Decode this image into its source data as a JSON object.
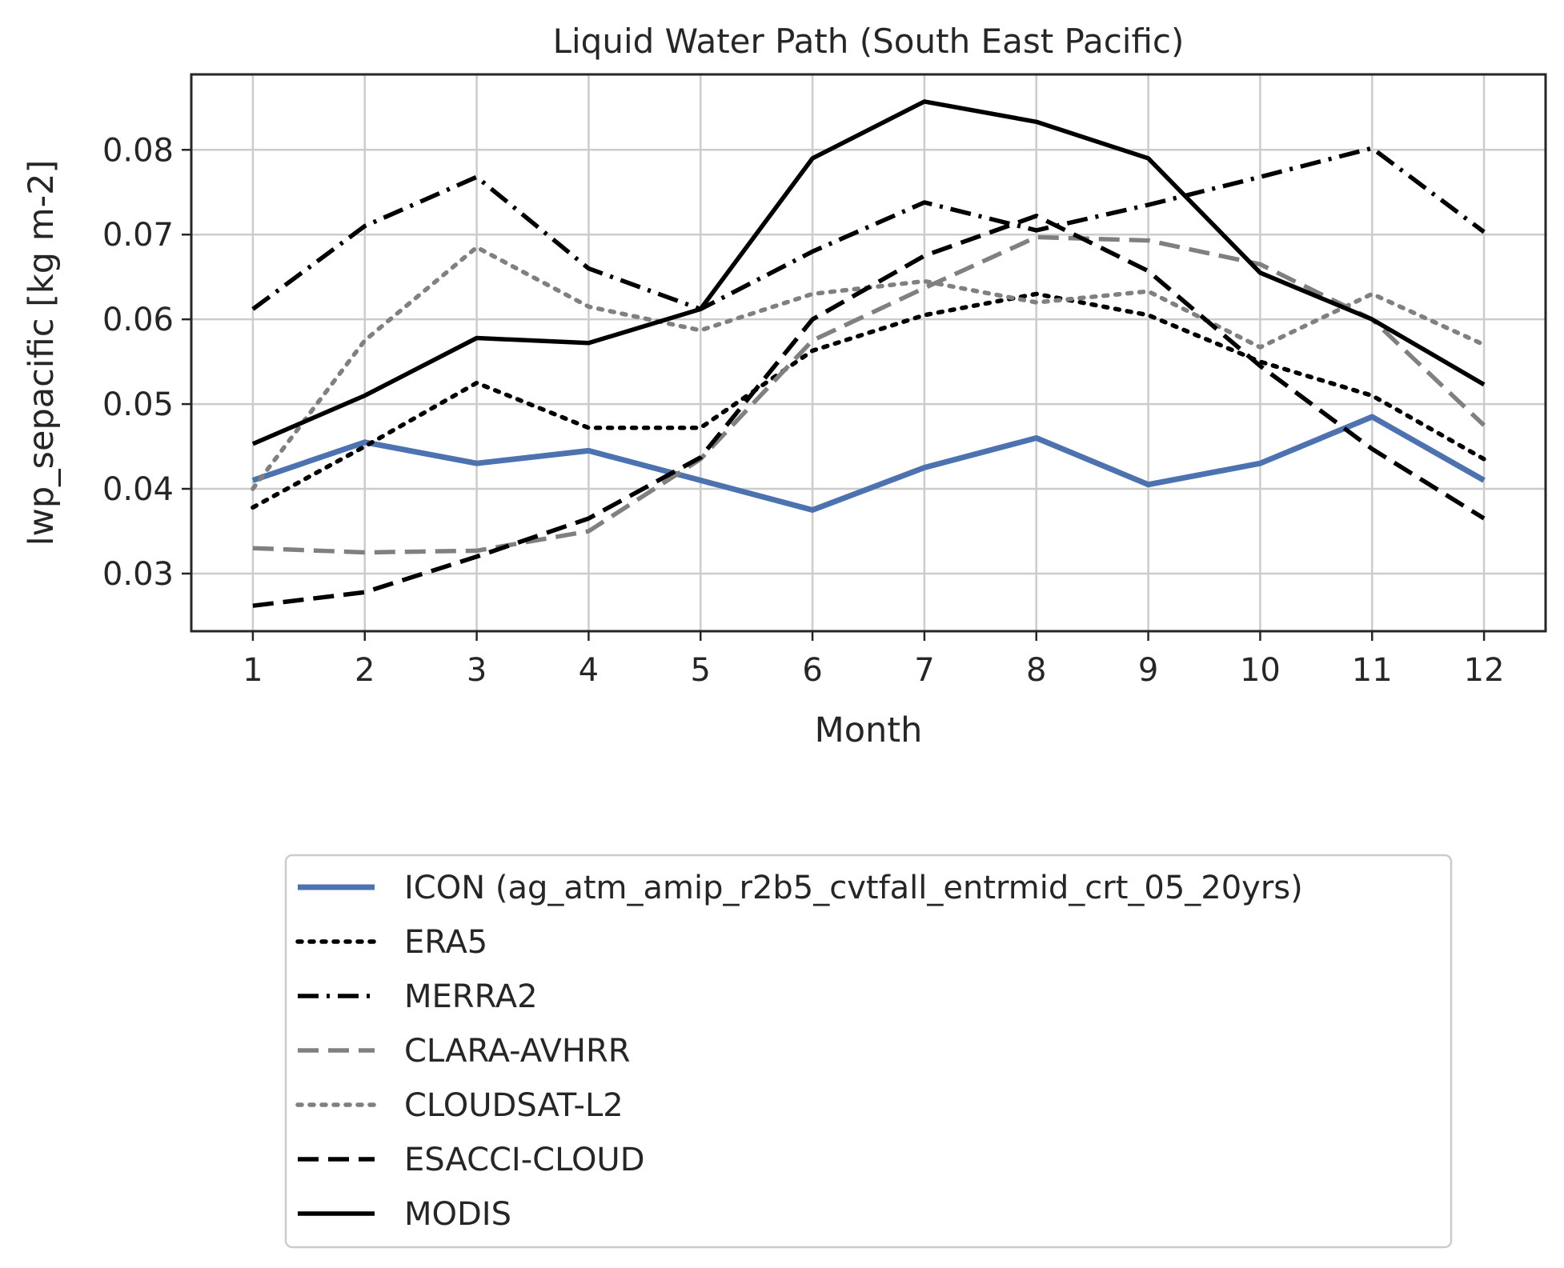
{
  "chart_data": {
    "type": "line",
    "title": "Liquid Water Path (South East Pacific)",
    "xlabel": "Month",
    "ylabel": "lwp_sepacific [kg m-2]",
    "x": [
      1,
      2,
      3,
      4,
      5,
      6,
      7,
      8,
      9,
      10,
      11,
      12
    ],
    "xlim": [
      0.45,
      12.55
    ],
    "ylim": [
      0.0232,
      0.0889
    ],
    "x_ticks": [
      "1",
      "2",
      "3",
      "4",
      "5",
      "6",
      "7",
      "8",
      "9",
      "10",
      "11",
      "12"
    ],
    "y_ticks": [
      "0.03",
      "0.04",
      "0.05",
      "0.06",
      "0.07",
      "0.08"
    ],
    "y_tick_values": [
      0.03,
      0.04,
      0.05,
      0.06,
      0.07,
      0.08
    ],
    "grid": true,
    "legend_position": "below",
    "series": [
      {
        "name": "ICON (ag_atm_amip_r2b5_cvtfall_entrmid_crt_05_20yrs)",
        "color": "#4c72b0",
        "style": "solid",
        "values": [
          0.041,
          0.0455,
          0.043,
          0.0445,
          0.041,
          0.0375,
          0.0425,
          0.046,
          0.0405,
          0.043,
          0.0485,
          0.041
        ]
      },
      {
        "name": "ERA5",
        "color": "#000000",
        "style": "dotted",
        "values": [
          0.0378,
          0.045,
          0.0525,
          0.0472,
          0.0472,
          0.0563,
          0.0605,
          0.063,
          0.0605,
          0.055,
          0.051,
          0.0435
        ]
      },
      {
        "name": "MERRA2",
        "color": "#000000",
        "style": "dashdot",
        "values": [
          0.0612,
          0.071,
          0.0768,
          0.066,
          0.0612,
          0.068,
          0.0738,
          0.0705,
          0.0735,
          0.0768,
          0.0802,
          0.0703
        ]
      },
      {
        "name": "CLARA-AVHRR",
        "color": "#808080",
        "style": "dashed",
        "values": [
          0.033,
          0.0325,
          0.0327,
          0.035,
          0.0435,
          0.0575,
          0.0637,
          0.0697,
          0.0693,
          0.0665,
          0.06,
          0.0475
        ]
      },
      {
        "name": "CLOUDSAT-L2",
        "color": "#808080",
        "style": "dotted",
        "values": [
          0.04,
          0.0575,
          0.0685,
          0.0615,
          0.0587,
          0.063,
          0.0645,
          0.062,
          0.0633,
          0.0567,
          0.063,
          0.057
        ]
      },
      {
        "name": "ESACCI-CLOUD",
        "color": "#000000",
        "style": "dashed",
        "values": [
          0.0262,
          0.0278,
          0.032,
          0.0365,
          0.0437,
          0.06,
          0.0675,
          0.0722,
          0.0657,
          0.0545,
          0.0447,
          0.0365
        ]
      },
      {
        "name": "MODIS",
        "color": "#000000",
        "style": "solid",
        "values": [
          0.0453,
          0.051,
          0.0578,
          0.0572,
          0.0612,
          0.079,
          0.0857,
          0.0833,
          0.079,
          0.0655,
          0.06,
          0.0523
        ]
      }
    ]
  }
}
